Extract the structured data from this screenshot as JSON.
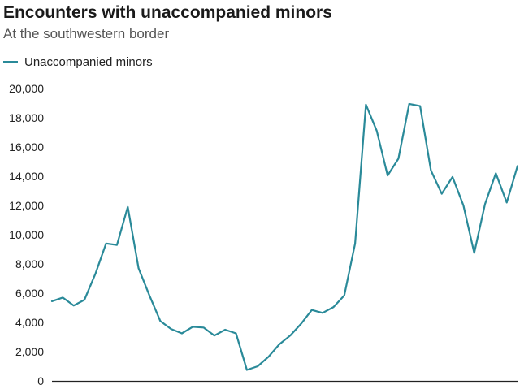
{
  "header": {
    "title": "Encounters with unaccompanied minors",
    "subtitle": "At the southwestern border"
  },
  "colors": {
    "series": "#2a8a99",
    "axis": "#222222"
  },
  "chart_data": {
    "type": "line",
    "title": "Encounters with unaccompanied minors",
    "subtitle": "At the southwestern border",
    "xlabel": "",
    "ylabel": "",
    "ylim": [
      0,
      20000
    ],
    "yticks": [
      0,
      2000,
      4000,
      6000,
      8000,
      10000,
      12000,
      14000,
      16000,
      18000,
      20000
    ],
    "ytick_labels": [
      "0",
      "2,000",
      "4,000",
      "6,000",
      "8,000",
      "10,000",
      "12,000",
      "14,000",
      "16,000",
      "18,000",
      "20,000"
    ],
    "grid": false,
    "legend": "top-left",
    "series": [
      {
        "name": "Unaccompanied minors",
        "values": [
          5450,
          5700,
          5150,
          5550,
          7300,
          9400,
          9300,
          11900,
          7700,
          5850,
          4100,
          3550,
          3250,
          3700,
          3650,
          3100,
          3500,
          3250,
          750,
          1000,
          1650,
          2500,
          3100,
          3900,
          4850,
          4650,
          5050,
          5850,
          9400,
          18900,
          17100,
          14050,
          15200,
          18950,
          18800,
          14400,
          12800,
          13950,
          12000,
          8750,
          12100,
          14200,
          12200,
          14700
        ]
      }
    ]
  }
}
